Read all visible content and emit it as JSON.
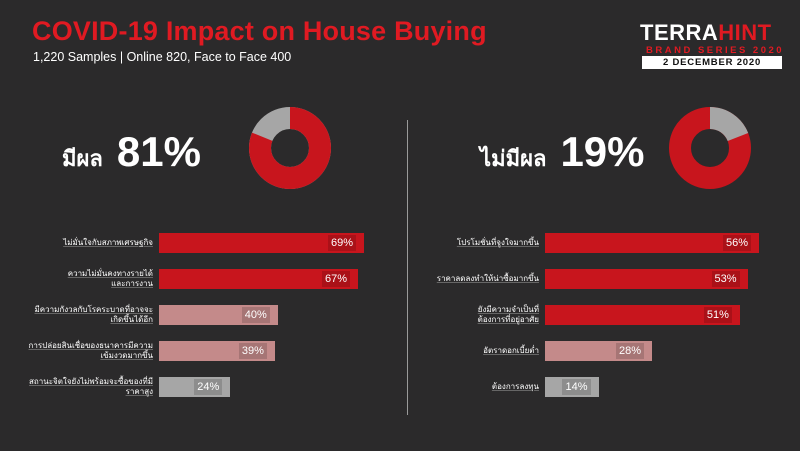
{
  "header": {
    "title": "COVID-19 Impact on House Buying",
    "subtitle": "1,220 Samples | Online 820, Face to Face 400"
  },
  "logo": {
    "word1": "TERRA",
    "word2": "HINT",
    "series": "BRAND SERIES 2020",
    "date": "2 DECEMBER 2020"
  },
  "colors": {
    "red": "#c8151d",
    "dark_red": "#8f1217",
    "pink": "#c48a8a",
    "gray": "#a6a6a6",
    "background": "#2b2a2b"
  },
  "chart_data": [
    {
      "type": "pie",
      "labels": [
        "มีผล",
        "ไม่มีผล"
      ],
      "values": [
        81,
        19
      ],
      "colors": [
        "#c8151d",
        "#a6a6a6"
      ]
    },
    {
      "type": "bar",
      "orientation": "horizontal",
      "headline": {
        "label": "มีผล",
        "value": "81%"
      },
      "categories": [
        "ไม่มั่นใจกับสภาพเศรษฐกิจ",
        "ความไม่มั่นคงทางรายได้ และการงาน",
        "มีความกังวลกับโรคระบาดที่อาจจะ เกิดขึ้นได้อีก",
        "การปล่อยสินเชื่อของธนาคารมีความ เข้มงวดมากขึ้น",
        "สถานะจิตใจยังไม่พร้อมจะซื้อของที่มี ราคาสูง"
      ],
      "values": [
        69,
        67,
        40,
        39,
        24
      ],
      "value_labels": [
        "69%",
        "67%",
        "40%",
        "39%",
        "24%"
      ],
      "bar_colors": [
        "#c8151d",
        "#c8151d",
        "#c48a8a",
        "#c48a8a",
        "#a6a6a6"
      ],
      "xlim": [
        0,
        69
      ]
    },
    {
      "type": "bar",
      "orientation": "horizontal",
      "headline": {
        "label": "ไม่มีผล",
        "value": "19%"
      },
      "categories": [
        "โปรโมชั่นที่จูงใจมากขึ้น",
        "ราคาลดลงทำให้น่าซื้อมากขึ้น",
        "ยังมีความจำเป็นที่ ต้องการที่อยู่อาศัย",
        "อัตราดอกเบี้ยต่ำ",
        "ต้องการลงทุน"
      ],
      "values": [
        56,
        53,
        51,
        28,
        14
      ],
      "value_labels": [
        "56%",
        "53%",
        "51%",
        "28%",
        "14%"
      ],
      "bar_colors": [
        "#c8151d",
        "#c8151d",
        "#c8151d",
        "#c48a8a",
        "#a6a6a6"
      ],
      "xlim": [
        0,
        56
      ]
    }
  ]
}
